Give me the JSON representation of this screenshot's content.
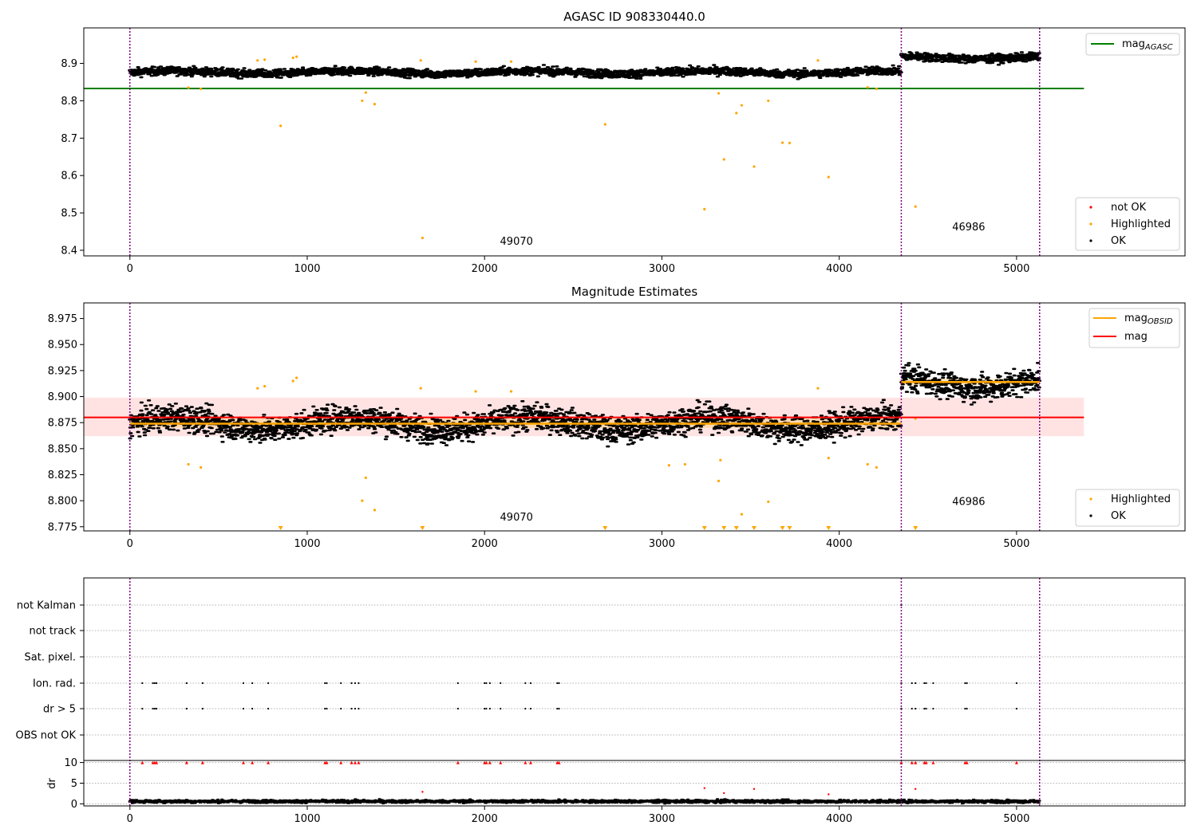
{
  "chart_data": [
    {
      "type": "scatter",
      "title": "AGASC ID 908330440.0",
      "xlim": [
        -260,
        5950
      ],
      "ylim": [
        8.385,
        8.995
      ],
      "xticks": [
        0,
        1000,
        2000,
        3000,
        4000,
        5000
      ],
      "yticks": [
        8.4,
        8.5,
        8.6,
        8.7,
        8.8,
        8.9
      ],
      "ytick_labels": [
        "8.4",
        "8.5",
        "8.6",
        "8.7",
        "8.8",
        "8.9"
      ],
      "obsid_boundaries": [
        0,
        4350,
        5130
      ],
      "obsid_labels": [
        {
          "text": "49070",
          "x": 2180,
          "y": 8.415
        },
        {
          "text": "46986",
          "x": 4730,
          "y": 8.453
        }
      ],
      "reference_line": {
        "name": "mag",
        "subscript": "AGASC",
        "y": 8.833,
        "x": [
          -260,
          5380
        ],
        "color": "#008000"
      },
      "ok_segments": [
        {
          "x0": 0,
          "x1": 4350,
          "mean": 8.876,
          "noise": 0.008
        },
        {
          "x0": 4350,
          "x1": 5130,
          "mean": 8.916,
          "noise": 0.008
        }
      ],
      "highlighted_points": [
        [
          330,
          8.835
        ],
        [
          400,
          8.832
        ],
        [
          720,
          8.908
        ],
        [
          760,
          8.91
        ],
        [
          850,
          8.733
        ],
        [
          920,
          8.915
        ],
        [
          940,
          8.918
        ],
        [
          1310,
          8.8
        ],
        [
          1330,
          8.822
        ],
        [
          1380,
          8.791
        ],
        [
          1650,
          8.433
        ],
        [
          1640,
          8.908
        ],
        [
          1950,
          8.905
        ],
        [
          2150,
          8.905
        ],
        [
          2680,
          8.737
        ],
        [
          3240,
          8.51
        ],
        [
          3320,
          8.82
        ],
        [
          3350,
          8.643
        ],
        [
          3420,
          8.767
        ],
        [
          3450,
          8.788
        ],
        [
          3520,
          8.624
        ],
        [
          3600,
          8.8
        ],
        [
          3680,
          8.688
        ],
        [
          3720,
          8.687
        ],
        [
          3880,
          8.908
        ],
        [
          3940,
          8.596
        ],
        [
          4160,
          8.836
        ],
        [
          4210,
          8.832
        ],
        [
          4430,
          8.517
        ]
      ],
      "legend": {
        "reference": [
          "mag",
          "AGASC"
        ],
        "points": [
          "not OK",
          "Highlighted",
          "OK"
        ]
      },
      "colors": {
        "ok": "#000000",
        "highlighted": "#ffa500",
        "not_ok": "#ff0000",
        "boundary": "#800080"
      }
    },
    {
      "type": "scatter",
      "title": "Magnitude Estimates",
      "xlim": [
        -260,
        5950
      ],
      "ylim": [
        8.771,
        8.99
      ],
      "xticks": [
        0,
        1000,
        2000,
        3000,
        4000,
        5000
      ],
      "yticks": [
        8.775,
        8.8,
        8.825,
        8.85,
        8.875,
        8.9,
        8.925,
        8.95,
        8.975
      ],
      "ytick_labels": [
        "8.775",
        "8.800",
        "8.825",
        "8.850",
        "8.875",
        "8.900",
        "8.925",
        "8.950",
        "8.975"
      ],
      "obsid_boundaries": [
        0,
        4350,
        5130
      ],
      "obsid_labels": [
        {
          "text": "49070",
          "x": 2180,
          "y": 8.781
        },
        {
          "text": "46986",
          "x": 4730,
          "y": 8.796
        }
      ],
      "mag_line": {
        "name": "mag",
        "y": 8.88,
        "x": [
          -260,
          5380
        ],
        "band": [
          8.862,
          8.899
        ],
        "color": "#ff0000"
      },
      "mag_obsid_segments": [
        {
          "x0": 0,
          "x1": 4350,
          "y": 8.874,
          "band": [
            8.87,
            8.879
          ]
        },
        {
          "x0": 4350,
          "x1": 5130,
          "y": 8.914,
          "band": [
            8.911,
            8.917
          ]
        }
      ],
      "ok_segments": [
        {
          "x0": 0,
          "x1": 4350,
          "mean": 8.874,
          "noise": 0.009
        },
        {
          "x0": 4350,
          "x1": 5130,
          "mean": 8.914,
          "noise": 0.009
        }
      ],
      "highlighted_points": [
        [
          330,
          8.835
        ],
        [
          400,
          8.832
        ],
        [
          720,
          8.908
        ],
        [
          760,
          8.91
        ],
        [
          920,
          8.915
        ],
        [
          940,
          8.918
        ],
        [
          1310,
          8.8
        ],
        [
          1330,
          8.822
        ],
        [
          1380,
          8.791
        ],
        [
          1640,
          8.908
        ],
        [
          1950,
          8.905
        ],
        [
          2150,
          8.905
        ],
        [
          3040,
          8.834
        ],
        [
          3130,
          8.835
        ],
        [
          3320,
          8.819
        ],
        [
          3330,
          8.839
        ],
        [
          3450,
          8.787
        ],
        [
          3600,
          8.799
        ],
        [
          3880,
          8.908
        ],
        [
          3940,
          8.841
        ],
        [
          4160,
          8.835
        ],
        [
          4210,
          8.832
        ],
        [
          4430,
          8.879
        ]
      ],
      "offscale_low_x": [
        850,
        1650,
        2680,
        3240,
        3350,
        3420,
        3520,
        3680,
        3720,
        3940,
        4430
      ],
      "legend": {
        "lines": [
          [
            "mag",
            "OBSID"
          ],
          [
            "mag",
            ""
          ]
        ],
        "points": [
          "Highlighted",
          "OK"
        ]
      },
      "colors": {
        "ok": "#000000",
        "highlighted": "#ffa500",
        "mag": "#ff0000",
        "mag_obsid": "#ffa500",
        "band": "#ffc0c0",
        "boundary": "#800080"
      }
    },
    {
      "type": "scatter",
      "title": "",
      "xlim": [
        -260,
        5950
      ],
      "xticks": [
        0,
        1000,
        2000,
        3000,
        4000,
        5000
      ],
      "obsid_boundaries": [
        0,
        4350,
        5130
      ],
      "flag_rows": [
        "not Kalman",
        "not track",
        "Sat. pixel.",
        "Ion. rad.",
        "dr > 5",
        "OBS not OK"
      ],
      "flag_x": [
        70,
        130,
        140,
        150,
        320,
        410,
        640,
        690,
        780,
        1100,
        1110,
        1190,
        1250,
        1270,
        1290,
        1850,
        2000,
        2010,
        2030,
        2090,
        2230,
        2260,
        2410,
        2420,
        4350,
        4410,
        4430,
        4480,
        4490,
        4530,
        4710,
        4720,
        5000
      ],
      "dr_ylabel": "dr",
      "dr_ylim": [
        -0.5,
        10.5
      ],
      "dr_yticks": [
        0,
        5,
        10
      ],
      "dr_ytick_labels": [
        "0",
        "5",
        "10"
      ],
      "dr_mean": 0.6,
      "dr_outliers": [
        [
          1650,
          2.9
        ],
        [
          3240,
          3.8
        ],
        [
          3350,
          2.6
        ],
        [
          3520,
          3.6
        ],
        [
          3940,
          2.3
        ],
        [
          4430,
          3.6
        ]
      ],
      "colors": {
        "flag": "#000000",
        "dr_clipped": "#ff0000",
        "ok": "#000000",
        "boundary": "#800080"
      }
    }
  ]
}
